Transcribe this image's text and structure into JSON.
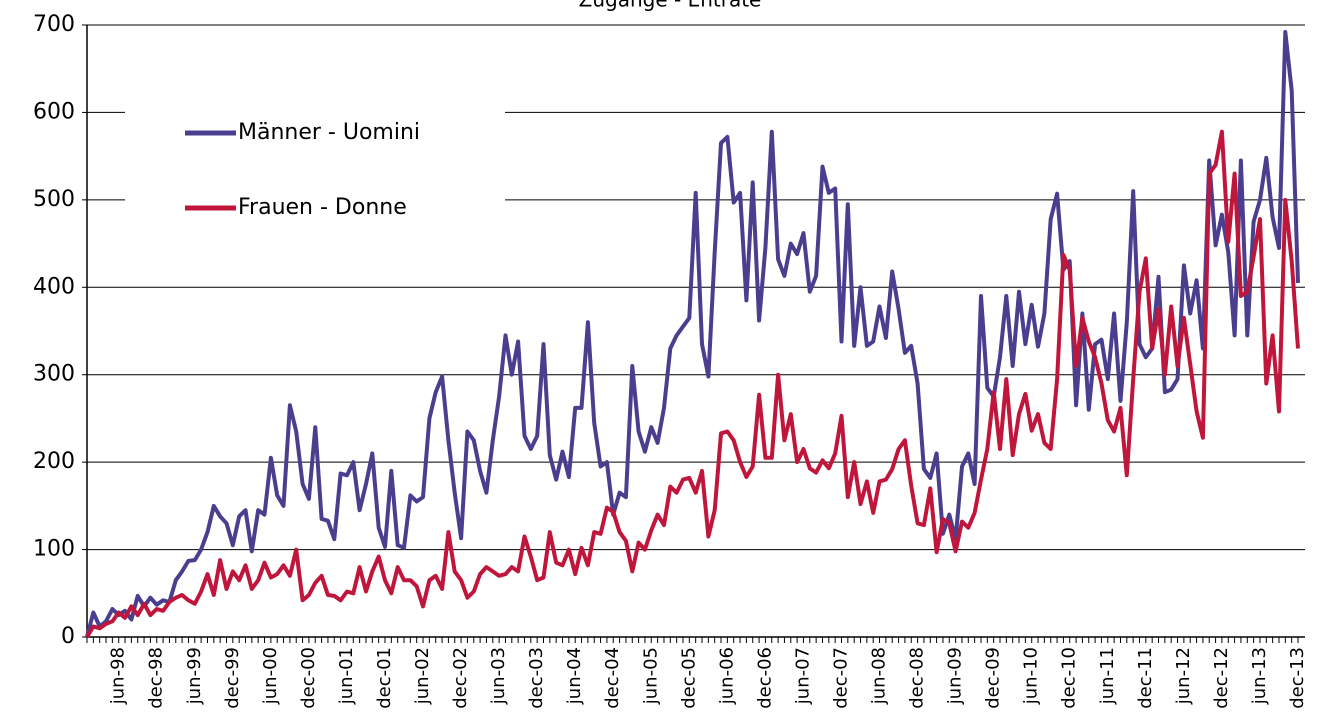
{
  "chart_data": {
    "type": "line",
    "title": "Zugänge - Entrate",
    "categories": [
      null,
      null,
      null,
      null,
      null,
      "jun-98",
      null,
      null,
      null,
      null,
      null,
      "dec-98",
      null,
      null,
      null,
      null,
      null,
      "jun-99",
      null,
      null,
      null,
      null,
      null,
      "dec-99",
      null,
      null,
      null,
      null,
      null,
      "jun-00",
      null,
      null,
      null,
      null,
      null,
      "dec-00",
      null,
      null,
      null,
      null,
      null,
      "jun-01",
      null,
      null,
      null,
      null,
      null,
      "dec-01",
      null,
      null,
      null,
      null,
      null,
      "jun-02",
      null,
      null,
      null,
      null,
      null,
      "dec-02",
      null,
      null,
      null,
      null,
      null,
      "jun-03",
      null,
      null,
      null,
      null,
      null,
      "dec-03",
      null,
      null,
      null,
      null,
      null,
      "jun-04",
      null,
      null,
      null,
      null,
      null,
      "dec-04",
      null,
      null,
      null,
      null,
      null,
      "jun-05",
      null,
      null,
      null,
      null,
      null,
      "dec-05",
      null,
      null,
      null,
      null,
      null,
      "jun-06",
      null,
      null,
      null,
      null,
      null,
      "dec-06",
      null,
      null,
      null,
      null,
      null,
      "jun-07",
      null,
      null,
      null,
      null,
      null,
      "dec-07",
      null,
      null,
      null,
      null,
      null,
      "jun-08",
      null,
      null,
      null,
      null,
      null,
      "dec-08",
      null,
      null,
      null,
      null,
      null,
      "jun-09",
      null,
      null,
      null,
      null,
      null,
      "dec-09",
      null,
      null,
      null,
      null,
      null,
      "jun-10",
      null,
      null,
      null,
      null,
      null,
      "dec-10",
      null,
      null,
      null,
      null,
      null,
      "jun-11",
      null,
      null,
      null,
      null,
      null,
      "dec-11",
      null,
      null,
      null,
      null,
      null,
      "jun-12",
      null,
      null,
      null,
      null,
      null,
      "dec-12",
      null,
      null,
      null,
      null,
      null,
      "jun-13",
      null,
      null,
      null,
      null,
      null,
      "dec-13"
    ],
    "series": [
      {
        "name": "Männer - Uomini",
        "color": "#4a3f8f",
        "values": [
          0,
          28,
          12,
          18,
          32,
          25,
          30,
          20,
          47,
          35,
          45,
          37,
          42,
          40,
          65,
          75,
          87,
          88,
          100,
          120,
          150,
          138,
          130,
          105,
          138,
          145,
          98,
          145,
          140,
          205,
          162,
          150,
          265,
          235,
          175,
          158,
          240,
          135,
          133,
          112,
          187,
          185,
          200,
          145,
          175,
          210,
          125,
          103,
          190,
          105,
          102,
          162,
          155,
          160,
          250,
          280,
          298,
          225,
          165,
          113,
          235,
          225,
          190,
          165,
          225,
          275,
          345,
          300,
          338,
          230,
          215,
          230,
          335,
          208,
          180,
          212,
          183,
          262,
          262,
          360,
          245,
          195,
          200,
          140,
          165,
          160,
          310,
          235,
          212,
          240,
          222,
          262,
          330,
          345,
          355,
          365,
          508,
          335,
          298,
          440,
          565,
          572,
          497,
          508,
          385,
          520,
          362,
          445,
          578,
          432,
          413,
          450,
          438,
          462,
          395,
          413,
          538,
          508,
          513,
          338,
          495,
          333,
          400,
          333,
          338,
          378,
          342,
          418,
          375,
          325,
          333,
          290,
          192,
          182,
          210,
          118,
          140,
          112,
          195,
          210,
          175,
          390,
          285,
          275,
          320,
          390,
          310,
          395,
          335,
          380,
          332,
          370,
          478,
          507,
          420,
          430,
          265,
          370,
          260,
          335,
          340,
          295,
          370,
          270,
          360,
          510,
          335,
          320,
          330,
          412,
          280,
          283,
          295,
          425,
          370,
          408,
          330,
          545,
          448,
          483,
          440,
          345,
          545,
          345,
          475,
          500,
          548,
          480,
          445,
          692,
          625,
          405
        ]
      },
      {
        "name": "Frauen - Donne",
        "color": "#c0163c",
        "values": [
          0,
          12,
          10,
          15,
          18,
          28,
          22,
          35,
          25,
          38,
          25,
          32,
          30,
          40,
          45,
          48,
          42,
          38,
          52,
          72,
          48,
          88,
          55,
          75,
          65,
          82,
          55,
          65,
          85,
          68,
          72,
          82,
          70,
          100,
          42,
          48,
          62,
          70,
          48,
          47,
          42,
          52,
          50,
          80,
          52,
          75,
          92,
          65,
          50,
          80,
          65,
          65,
          58,
          35,
          65,
          70,
          55,
          120,
          75,
          65,
          45,
          52,
          72,
          80,
          75,
          70,
          72,
          80,
          75,
          115,
          92,
          65,
          68,
          120,
          85,
          82,
          100,
          72,
          102,
          82,
          120,
          118,
          148,
          143,
          120,
          110,
          75,
          108,
          100,
          122,
          140,
          128,
          172,
          165,
          180,
          182,
          165,
          190,
          115,
          145,
          233,
          235,
          225,
          200,
          183,
          195,
          277,
          205,
          205,
          300,
          225,
          255,
          200,
          215,
          193,
          188,
          202,
          193,
          210,
          253,
          160,
          200,
          152,
          178,
          142,
          178,
          180,
          192,
          215,
          225,
          173,
          130,
          128,
          170,
          97,
          135,
          130,
          98,
          132,
          125,
          142,
          180,
          215,
          280,
          215,
          295,
          208,
          255,
          278,
          236,
          255,
          222,
          215,
          295,
          437,
          420,
          310,
          365,
          338,
          320,
          290,
          248,
          235,
          262,
          185,
          295,
          395,
          433,
          330,
          375,
          300,
          378,
          310,
          365,
          312,
          258,
          228,
          530,
          540,
          578,
          452,
          530,
          390,
          395,
          435,
          478,
          290,
          345,
          258,
          500,
          430,
          330
        ]
      }
    ],
    "ylim": [
      0,
      700
    ],
    "yticks": [
      0,
      100,
      200,
      300,
      400,
      500,
      600,
      700
    ],
    "grid": true,
    "legend": "upper-left"
  }
}
